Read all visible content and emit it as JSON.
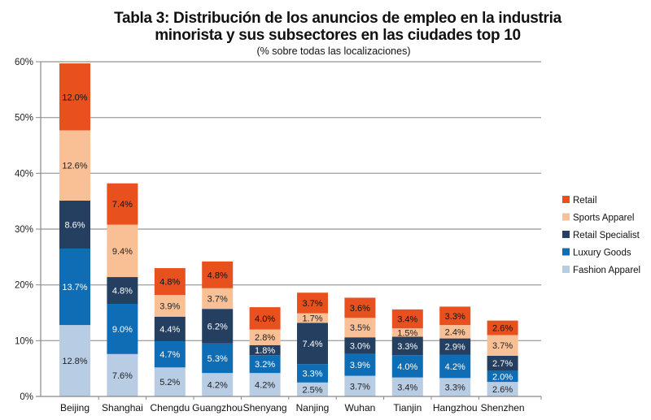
{
  "chart_data": {
    "type": "bar",
    "stacked": true,
    "title_line1": "Tabla 3: Distribución de los anuncios de empleo en la industria",
    "title_line2": "minorista y sus subsectores en las ciudades top 10",
    "subtitle": "(% sobre todas las localizaciones)",
    "xlabel": "",
    "ylabel": "",
    "ylim": [
      0,
      60
    ],
    "yticks": [
      0,
      10,
      20,
      30,
      40,
      50,
      60
    ],
    "ytick_labels": [
      "0%",
      "10%",
      "20%",
      "30%",
      "40%",
      "50%",
      "60%"
    ],
    "grid": true,
    "legend_position": "right",
    "categories": [
      "Beijing",
      "Shanghai",
      "Chengdu",
      "Guangzhou",
      "Shenyang",
      "Nanjing",
      "Wuhan",
      "Tianjin",
      "Hangzhou",
      "Shenzhen"
    ],
    "series": [
      {
        "name": "Fashion Apparel",
        "color": "#b8cce4",
        "label_color": "#222222",
        "values": [
          12.8,
          7.6,
          5.2,
          4.2,
          4.2,
          2.5,
          3.7,
          3.4,
          3.3,
          2.6
        ]
      },
      {
        "name": "Luxury Goods",
        "color": "#0f6db5",
        "label_color": "#ffffff",
        "values": [
          13.7,
          9.0,
          4.7,
          5.3,
          3.2,
          3.3,
          3.9,
          4.0,
          4.2,
          2.0
        ]
      },
      {
        "name": "Retail Specialist",
        "color": "#243f60",
        "label_color": "#ffffff",
        "values": [
          8.6,
          4.8,
          4.4,
          6.2,
          1.8,
          7.4,
          3.0,
          3.3,
          2.9,
          2.7
        ]
      },
      {
        "name": "Sports Apparel",
        "color": "#f9bf95",
        "label_color": "#222222",
        "values": [
          12.6,
          9.4,
          3.9,
          3.7,
          2.8,
          1.7,
          3.5,
          1.5,
          2.4,
          3.7
        ]
      },
      {
        "name": "Retail",
        "color": "#e8501e",
        "label_color": "#111111",
        "values": [
          12.0,
          7.4,
          4.8,
          4.8,
          4.0,
          3.7,
          3.6,
          3.4,
          3.3,
          2.6
        ]
      }
    ],
    "legend_order": [
      "Retail",
      "Sports Apparel",
      "Retail Specialist",
      "Luxury Goods",
      "Fashion Apparel"
    ]
  }
}
